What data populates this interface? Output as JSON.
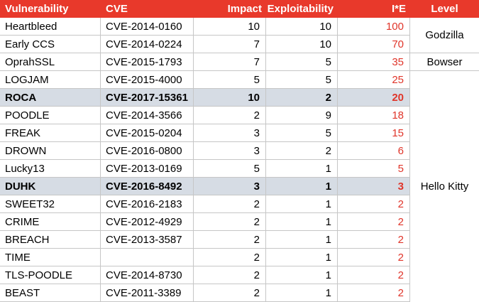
{
  "table": {
    "headers": [
      "Vulnerability",
      "CVE",
      "Impact",
      "Exploitability",
      "I*E",
      "Level"
    ],
    "rows": [
      {
        "name": "Heartbleed",
        "cve": "CVE-2014-0160",
        "impact": "10",
        "exploitability": "10",
        "ie": "100",
        "highlighted": false
      },
      {
        "name": "Early CCS",
        "cve": "CVE-2014-0224",
        "impact": "7",
        "exploitability": "10",
        "ie": "70",
        "highlighted": false
      },
      {
        "name": "OprahSSL",
        "cve": "CVE-2015-1793",
        "impact": "7",
        "exploitability": "5",
        "ie": "35",
        "highlighted": false
      },
      {
        "name": "LOGJAM",
        "cve": "CVE-2015-4000",
        "impact": "5",
        "exploitability": "5",
        "ie": "25",
        "highlighted": false
      },
      {
        "name": "ROCA",
        "cve": "CVE-2017-15361",
        "impact": "10",
        "exploitability": "2",
        "ie": "20",
        "highlighted": true
      },
      {
        "name": "POODLE",
        "cve": "CVE-2014-3566",
        "impact": "2",
        "exploitability": "9",
        "ie": "18",
        "highlighted": false
      },
      {
        "name": "FREAK",
        "cve": "CVE-2015-0204",
        "impact": "3",
        "exploitability": "5",
        "ie": "15",
        "highlighted": false
      },
      {
        "name": "DROWN",
        "cve": "CVE-2016-0800",
        "impact": "3",
        "exploitability": "2",
        "ie": "6",
        "highlighted": false
      },
      {
        "name": "Lucky13",
        "cve": "CVE-2013-0169",
        "impact": "5",
        "exploitability": "1",
        "ie": "5",
        "highlighted": false
      },
      {
        "name": "DUHK",
        "cve": "CVE-2016-8492",
        "impact": "3",
        "exploitability": "1",
        "ie": "3",
        "highlighted": true
      },
      {
        "name": "SWEET32",
        "cve": "CVE-2016-2183",
        "impact": "2",
        "exploitability": "1",
        "ie": "2",
        "highlighted": false
      },
      {
        "name": "CRIME",
        "cve": "CVE-2012-4929",
        "impact": "2",
        "exploitability": "1",
        "ie": "2",
        "highlighted": false
      },
      {
        "name": "BREACH",
        "cve": "CVE-2013-3587",
        "impact": "2",
        "exploitability": "1",
        "ie": "2",
        "highlighted": false
      },
      {
        "name": "TIME",
        "cve": "",
        "impact": "2",
        "exploitability": "1",
        "ie": "2",
        "highlighted": false
      },
      {
        "name": "TLS-POODLE",
        "cve": "CVE-2014-8730",
        "impact": "2",
        "exploitability": "1",
        "ie": "2",
        "highlighted": false
      },
      {
        "name": "BEAST",
        "cve": "CVE-2011-3389",
        "impact": "2",
        "exploitability": "1",
        "ie": "2",
        "highlighted": false
      }
    ],
    "levels": [
      {
        "label": "Godzilla",
        "spans_rows": "Heartbleed–Early CCS"
      },
      {
        "label": "Bowser",
        "spans_rows": "OprahSSL"
      },
      {
        "label": "Hello Kitty",
        "spans_rows": "LOGJAM–BEAST"
      }
    ]
  },
  "colors": {
    "header_bg": "#E8392B",
    "header_text": "#FFFFFF",
    "value_red": "#E0352A",
    "gridline": "#C6C6C6",
    "highlight_row_bg": "#D6DCE4",
    "cell_text": "#000000"
  }
}
